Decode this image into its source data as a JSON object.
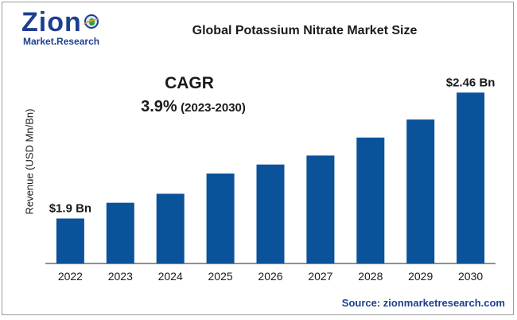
{
  "brand": {
    "logo_word": "Zion",
    "logo_sub_left": "Market",
    "logo_sub_dot": ".",
    "logo_sub_right": "Research"
  },
  "colors": {
    "bar": "#0a529a",
    "brand": "#1d3f8f",
    "axis": "#222222"
  },
  "annotation": {
    "cagr_label": "CAGR",
    "cagr_value": "3.9%",
    "cagr_period": "(2023-2030)"
  },
  "source": "Source: zionmarketresearch.com",
  "chart_data": {
    "type": "bar",
    "title": "Global Potassium Nitrate Market Size",
    "xlabel": "",
    "ylabel": "Revenue (USD Mn/Bn)",
    "categories": [
      "2022",
      "2023",
      "2024",
      "2025",
      "2026",
      "2027",
      "2028",
      "2029",
      "2030"
    ],
    "values": [
      1.9,
      1.97,
      2.01,
      2.1,
      2.14,
      2.18,
      2.26,
      2.34,
      2.46
    ],
    "ylim": [
      1.7,
      2.5
    ],
    "grid": false,
    "data_labels": [
      {
        "index": 0,
        "text": "$1.9 Bn"
      },
      {
        "index": 8,
        "text": "$2.46 Bn"
      }
    ]
  }
}
